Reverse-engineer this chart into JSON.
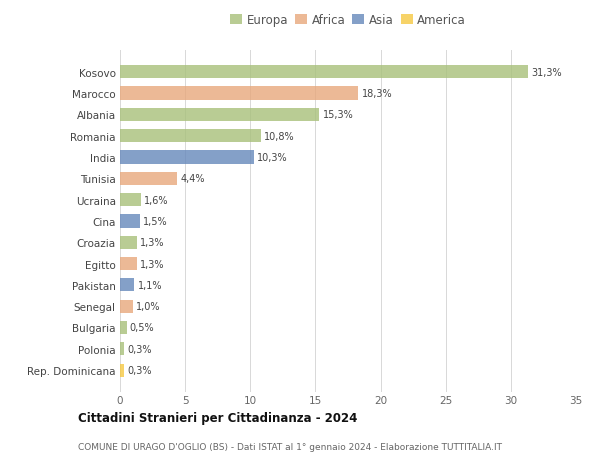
{
  "countries": [
    "Kosovo",
    "Marocco",
    "Albania",
    "Romania",
    "India",
    "Tunisia",
    "Ucraina",
    "Cina",
    "Croazia",
    "Egitto",
    "Pakistan",
    "Senegal",
    "Bulgaria",
    "Polonia",
    "Rep. Dominicana"
  ],
  "values": [
    31.3,
    18.3,
    15.3,
    10.8,
    10.3,
    4.4,
    1.6,
    1.5,
    1.3,
    1.3,
    1.1,
    1.0,
    0.5,
    0.3,
    0.3
  ],
  "labels": [
    "31,3%",
    "18,3%",
    "15,3%",
    "10,8%",
    "10,3%",
    "4,4%",
    "1,6%",
    "1,5%",
    "1,3%",
    "1,3%",
    "1,1%",
    "1,0%",
    "0,5%",
    "0,3%",
    "0,3%"
  ],
  "continents": [
    "Europa",
    "Africa",
    "Europa",
    "Europa",
    "Asia",
    "Africa",
    "Europa",
    "Asia",
    "Europa",
    "Africa",
    "Asia",
    "Africa",
    "Europa",
    "Europa",
    "America"
  ],
  "colors": {
    "Europa": "#a8c07a",
    "Africa": "#e8a87c",
    "Asia": "#6688bb",
    "America": "#f5c842"
  },
  "title": "Cittadini Stranieri per Cittadinanza - 2024",
  "subtitle": "COMUNE DI URAGO D'OGLIO (BS) - Dati ISTAT al 1° gennaio 2024 - Elaborazione TUTTITALIA.IT",
  "xlim": [
    0,
    35
  ],
  "xticks": [
    0,
    5,
    10,
    15,
    20,
    25,
    30,
    35
  ],
  "background_color": "#ffffff",
  "grid_color": "#d8d8d8",
  "bar_height": 0.62,
  "bar_alpha": 0.8
}
